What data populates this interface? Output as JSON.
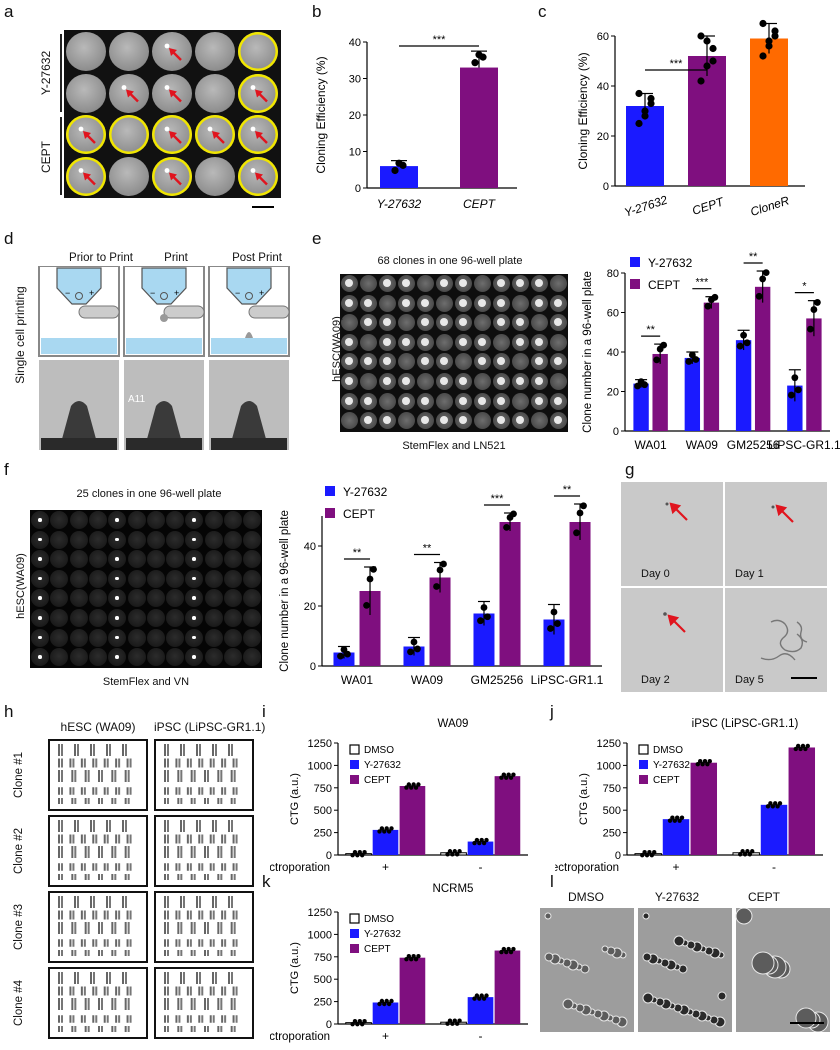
{
  "colors": {
    "blue": "#1a1aff",
    "purple": "#7f0f7f",
    "orange": "#ff6a00"
  },
  "letters": {
    "a": "a",
    "b": "b",
    "c": "c",
    "d": "d",
    "e": "e",
    "f": "f",
    "g": "g",
    "h": "h",
    "i": "i",
    "j": "j",
    "k": "k",
    "l": "l"
  },
  "panel_a": {
    "row_labels": [
      "Y-27632",
      "CEPT"
    ]
  },
  "panel_d": {
    "side_label": "Single cell printing",
    "stages": [
      "Prior to Print",
      "Print",
      "Post Print"
    ],
    "well_id": "A11"
  },
  "panel_e": {
    "title": "68 clones in one 96-well plate",
    "side_label": "hESC(WA09)",
    "caption": "StemFlex and LN521"
  },
  "panel_f": {
    "title": "25 clones in one 96-well plate",
    "side_label": "hESC(WA09)",
    "caption": "StemFlex and VN"
  },
  "panel_g": {
    "days": [
      "Day 0",
      "Day 1",
      "Day 2",
      "Day 5"
    ]
  },
  "panel_h": {
    "columns": [
      "hESC (WA09)",
      "iPSC (LiPSC-GR1.1)"
    ],
    "clones": [
      "Clone #1",
      "Clone #2",
      "Clone #3",
      "Clone #4"
    ]
  },
  "panel_l": {
    "labels": [
      "DMSO",
      "Y-27632",
      "CEPT"
    ]
  },
  "chart_data": [
    {
      "id": "b",
      "type": "bar",
      "title": "",
      "ylabel": "Cloning Efficiency (%)",
      "categories": [
        "Y-27632",
        "CEPT"
      ],
      "values": [
        6,
        33
      ],
      "errors": [
        1.5,
        4.5
      ],
      "ylim": [
        0,
        40
      ],
      "yticks": [
        0,
        10,
        20,
        30,
        40
      ],
      "significance": [
        {
          "pair": [
            0,
            1
          ],
          "label": "***"
        }
      ],
      "colors": [
        "#1a1aff",
        "#7f0f7f"
      ]
    },
    {
      "id": "c",
      "type": "bar",
      "title": "",
      "ylabel": "Cloning Efficiency (%)",
      "categories": [
        "Y-27632",
        "CEPT",
        "CloneR"
      ],
      "values": [
        32,
        52,
        59
      ],
      "errors": [
        5,
        8,
        6
      ],
      "ylim": [
        0,
        60
      ],
      "yticks": [
        0,
        20,
        40,
        60
      ],
      "significance": [
        {
          "pair": [
            0,
            1
          ],
          "label": "***"
        }
      ],
      "colors": [
        "#1a1aff",
        "#7f0f7f",
        "#ff6a00"
      ]
    },
    {
      "id": "e",
      "type": "bar",
      "title": "",
      "ylabel": "Clone number in a 96-well plate",
      "categories": [
        "WA01",
        "WA09",
        "GM25256",
        "LiPSC-GR1.1"
      ],
      "series": [
        {
          "name": "Y-27632",
          "values": [
            24,
            37,
            46,
            23
          ],
          "errors": [
            2,
            3,
            5,
            8
          ]
        },
        {
          "name": "CEPT",
          "values": [
            39,
            65,
            73,
            57
          ],
          "errors": [
            5,
            3,
            8,
            9
          ]
        }
      ],
      "ylim": [
        0,
        80
      ],
      "yticks": [
        0,
        20,
        40,
        60,
        80
      ],
      "significance": [
        "**",
        "***",
        "**",
        "*"
      ]
    },
    {
      "id": "f",
      "type": "bar",
      "title": "",
      "ylabel": "Clone number in a 96-well plate",
      "categories": [
        "WA01",
        "WA09",
        "GM25256",
        "LiPSC-GR1.1"
      ],
      "series": [
        {
          "name": "Y-27632",
          "values": [
            4.5,
            6.5,
            17.5,
            15.5
          ],
          "errors": [
            2,
            3,
            4,
            5
          ]
        },
        {
          "name": "CEPT",
          "values": [
            25,
            29.5,
            48,
            48
          ],
          "errors": [
            8,
            5,
            3,
            6
          ]
        }
      ],
      "ylim": [
        0,
        50
      ],
      "yticks": [
        0,
        20,
        40
      ],
      "significance": [
        "**",
        "**",
        "***",
        "**"
      ]
    },
    {
      "id": "i",
      "type": "bar",
      "title": "WA09",
      "ylabel": "CTG (a.u.)",
      "xlabel": "Electroporation",
      "groups": [
        "+",
        "-"
      ],
      "series": [
        {
          "name": "DMSO",
          "values": [
            15,
            25
          ]
        },
        {
          "name": "Y-27632",
          "values": [
            280,
            150
          ]
        },
        {
          "name": "CEPT",
          "values": [
            770,
            880
          ]
        }
      ],
      "ylim": [
        0,
        1250
      ],
      "yticks": [
        0,
        250,
        500,
        750,
        1000,
        1250
      ]
    },
    {
      "id": "j",
      "type": "bar",
      "title": "iPSC (LiPSC-GR1.1)",
      "ylabel": "CTG (a.u.)",
      "xlabel": "Electroporation",
      "groups": [
        "+",
        "-"
      ],
      "series": [
        {
          "name": "DMSO",
          "values": [
            15,
            25
          ]
        },
        {
          "name": "Y-27632",
          "values": [
            400,
            560
          ]
        },
        {
          "name": "CEPT",
          "values": [
            1030,
            1200
          ]
        }
      ],
      "ylim": [
        0,
        1250
      ],
      "yticks": [
        0,
        250,
        500,
        750,
        1000,
        1250
      ]
    },
    {
      "id": "k",
      "type": "bar",
      "title": "NCRM5",
      "ylabel": "CTG (a.u.)",
      "xlabel": "Electroporation",
      "groups": [
        "+",
        "-"
      ],
      "series": [
        {
          "name": "DMSO",
          "values": [
            15,
            20
          ]
        },
        {
          "name": "Y-27632",
          "values": [
            240,
            300
          ]
        },
        {
          "name": "CEPT",
          "values": [
            740,
            820
          ]
        }
      ],
      "ylim": [
        0,
        1250
      ],
      "yticks": [
        0,
        250,
        500,
        750,
        1000,
        1250
      ]
    }
  ]
}
